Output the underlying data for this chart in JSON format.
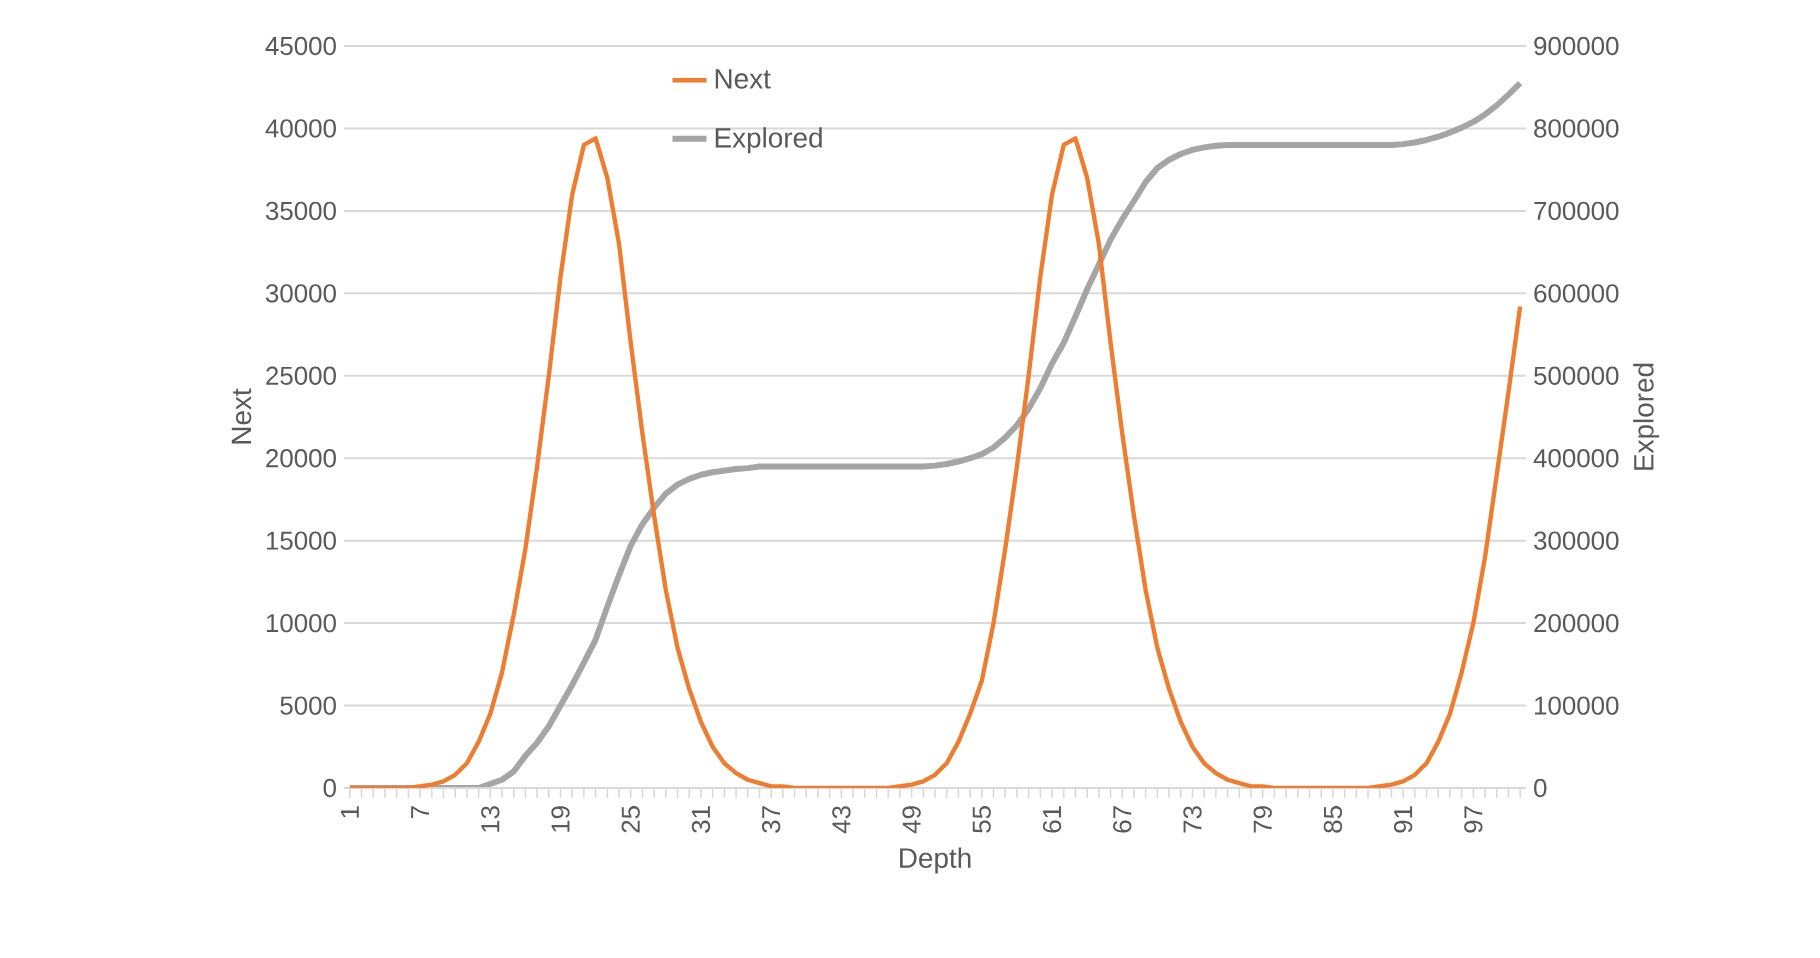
{
  "chart_data": {
    "type": "line",
    "xlabel": "Depth",
    "ylabel": "Next",
    "y2label": "Explored",
    "categories": [
      "1",
      null,
      null,
      null,
      null,
      null,
      "7",
      null,
      null,
      null,
      null,
      null,
      "13",
      null,
      null,
      null,
      null,
      null,
      "19",
      null,
      null,
      null,
      null,
      null,
      "25",
      null,
      null,
      null,
      null,
      null,
      "31",
      null,
      null,
      null,
      null,
      null,
      "37",
      null,
      null,
      null,
      null,
      null,
      "43",
      null,
      null,
      null,
      null,
      null,
      "49",
      null,
      null,
      null,
      null,
      null,
      "55",
      null,
      null,
      null,
      null,
      null,
      "61",
      null,
      null,
      null,
      null,
      null,
      "67",
      null,
      null,
      null,
      null,
      null,
      "73",
      null,
      null,
      null,
      null,
      null,
      "79",
      null,
      null,
      null,
      null,
      null,
      "85",
      null,
      null,
      null,
      null,
      null,
      "91",
      null,
      null,
      null,
      null,
      null,
      "97",
      null,
      null,
      null,
      null
    ],
    "series": [
      {
        "name": "Next",
        "color": "#ed7d31",
        "values": [
          0,
          0,
          0,
          0,
          0,
          0,
          100,
          200,
          400,
          800,
          1500,
          2800,
          4500,
          7000,
          10500,
          14500,
          19500,
          25000,
          31000,
          36000,
          39000,
          39400,
          37000,
          33000,
          27000,
          21500,
          16500,
          12000,
          8500,
          6000,
          4000,
          2500,
          1500,
          900,
          500,
          300,
          100,
          100,
          0,
          0,
          0,
          0,
          0,
          0,
          0,
          0,
          0,
          100,
          200,
          400,
          800,
          1500,
          2800,
          4500,
          6500,
          10000,
          14500,
          19500,
          25000,
          31000,
          36000,
          39000,
          39400,
          37000,
          33000,
          27000,
          21500,
          16500,
          12000,
          8500,
          6000,
          4000,
          2500,
          1500,
          900,
          500,
          300,
          100,
          100,
          0,
          0,
          0,
          0,
          0,
          0,
          0,
          0,
          0,
          100,
          200,
          400,
          800,
          1500,
          2800,
          4500,
          7000,
          10000,
          14000,
          19000,
          24000,
          29200
        ]
      },
      {
        "name": "Explored",
        "color": "#a5a5a5",
        "axis": "y2",
        "values": [
          0,
          0,
          0,
          0,
          0,
          0,
          0,
          0,
          0,
          0,
          0,
          0,
          5000,
          10000,
          20000,
          39000,
          55000,
          75000,
          100000,
          125000,
          152000,
          180000,
          220000,
          258000,
          294000,
          320000,
          340000,
          357000,
          368000,
          375000,
          380000,
          383000,
          385000,
          387000,
          388000,
          390000,
          390000,
          390000,
          390000,
          390000,
          390000,
          390000,
          390000,
          390000,
          390000,
          390000,
          390000,
          390000,
          390000,
          390000,
          391000,
          393000,
          396000,
          400000,
          405000,
          413000,
          425000,
          440000,
          460000,
          485000,
          515000,
          540000,
          572000,
          605000,
          635000,
          665000,
          690000,
          712000,
          735000,
          752000,
          762000,
          769000,
          774000,
          777000,
          779000,
          780000,
          780000,
          780000,
          780000,
          780000,
          780000,
          780000,
          780000,
          780000,
          780000,
          780000,
          780000,
          780000,
          780000,
          780000,
          781000,
          783000,
          786000,
          790000,
          795000,
          801000,
          808000,
          817000,
          828000,
          841000,
          855000
        ]
      }
    ],
    "ylim": [
      0,
      45000
    ],
    "yticks": [
      0,
      5000,
      10000,
      15000,
      20000,
      25000,
      30000,
      35000,
      40000,
      45000
    ],
    "y2lim": [
      0,
      900000
    ],
    "y2ticks": [
      0,
      100000,
      200000,
      300000,
      400000,
      500000,
      600000,
      700000,
      800000,
      900000
    ],
    "grid": "y",
    "legend": "top",
    "marker": "none",
    "line_style": "solid"
  }
}
